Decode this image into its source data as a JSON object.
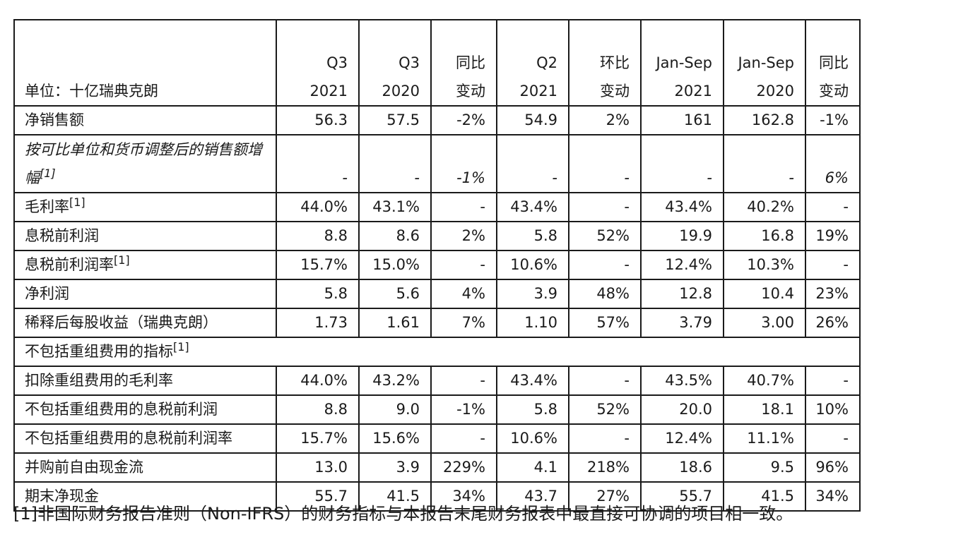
{
  "header": {
    "unit_label": "单位：十亿瑞典克朗",
    "columns": [
      {
        "line1": "",
        "line2": "Q3 2021"
      },
      {
        "line1": "Q3",
        "line2": "2020"
      },
      {
        "line1": "同比",
        "line2": "变动"
      },
      {
        "line1": "Q2",
        "line2": "2021"
      },
      {
        "line1": "环比",
        "line2": "变动"
      },
      {
        "line1": "Jan-Sep",
        "line2": "2021"
      },
      {
        "line1": "Jan-Sep",
        "line2": "2020"
      },
      {
        "line1": "同比",
        "line2": "变动"
      }
    ]
  },
  "rows": [
    {
      "label": "净销售额",
      "note": "",
      "values": [
        "56.3",
        "57.5",
        "-2%",
        "54.9",
        "2%",
        "161",
        "162.8",
        "-1%"
      ]
    },
    {
      "label": "按可比单位和货币调整后的销售额增幅",
      "note": "[1]",
      "values": [
        "-",
        "-",
        "-1%",
        "-",
        "-",
        "-",
        "-",
        "6%"
      ]
    },
    {
      "label": "毛利率",
      "note": "[1]",
      "values": [
        "44.0%",
        "43.1%",
        "-",
        "43.4%",
        "-",
        "43.4%",
        "40.2%",
        "-"
      ]
    },
    {
      "label": "息税前利润",
      "note": "",
      "values": [
        "8.8",
        "8.6",
        "2%",
        "5.8",
        "52%",
        "19.9",
        "16.8",
        "19%"
      ]
    },
    {
      "label": "息税前利润率",
      "note": "[1]",
      "values": [
        "15.7%",
        "15.0%",
        "-",
        "10.6%",
        "-",
        "12.4%",
        "10.3%",
        "-"
      ]
    },
    {
      "label": "净利润",
      "note": "",
      "values": [
        "5.8",
        "5.6",
        "4%",
        "3.9",
        "48%",
        "12.8",
        "10.4",
        "23%"
      ]
    },
    {
      "label": "稀释后每股收益（瑞典克朗）",
      "note": "",
      "values": [
        "1.73",
        "1.61",
        "7%",
        "1.10",
        "57%",
        "3.79",
        "3.00",
        "26%"
      ]
    }
  ],
  "section": {
    "label": "不包括重组费用的指标",
    "note": "[1]"
  },
  "rows2": [
    {
      "label": "扣除重组费用的毛利率",
      "values": [
        "44.0%",
        "43.2%",
        "-",
        "43.4%",
        "-",
        "43.5%",
        "40.7%",
        "-"
      ]
    },
    {
      "label": "不包括重组费用的息税前利润",
      "values": [
        "8.8",
        "9.0",
        "-1%",
        "5.8",
        "52%",
        "20.0",
        "18.1",
        "10%"
      ]
    },
    {
      "label": "不包括重组费用的息税前利润率",
      "values": [
        "15.7%",
        "15.6%",
        "-",
        "10.6%",
        "-",
        "12.4%",
        "11.1%",
        "-"
      ]
    },
    {
      "label": "并购前自由现金流",
      "values": [
        "13.0",
        "3.9",
        "229%",
        "4.1",
        "218%",
        "18.6",
        "9.5",
        "96%"
      ]
    },
    {
      "label": "期末净现金",
      "values": [
        "55.7",
        "41.5",
        "34%",
        "43.7",
        "27%",
        "55.7",
        "41.5",
        "34%"
      ]
    }
  ],
  "footnote": "[1]非国际财务报告准则（Non-IFRS）的财务指标与本报告末尾财务报表中最直接可协调的项目相一致。"
}
